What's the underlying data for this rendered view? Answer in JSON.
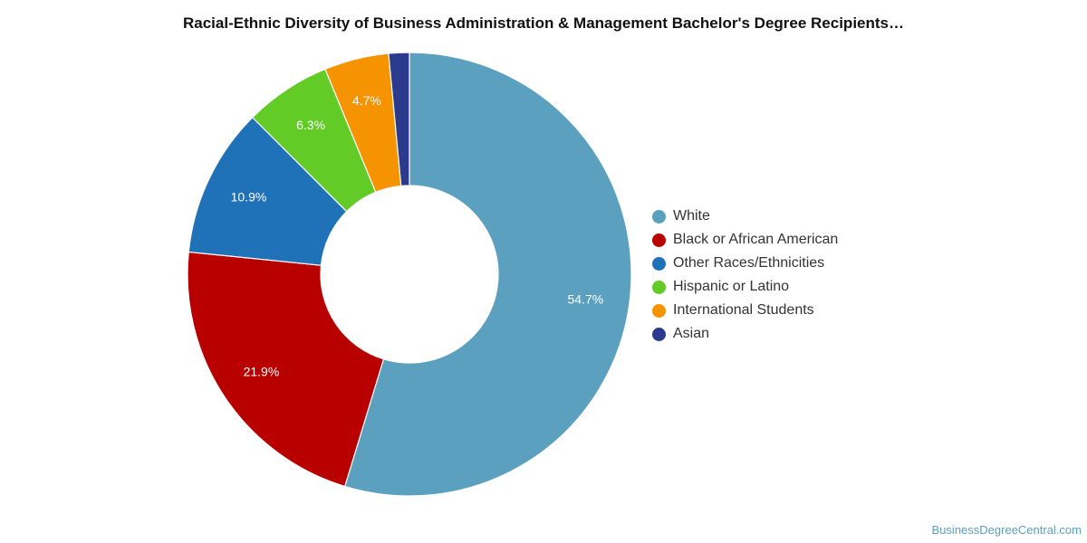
{
  "credit": "BusinessDegreeCentral.com",
  "chart_data": {
    "type": "pie",
    "title": "Racial-Ethnic Diversity of Business Administration & Management Bachelor's Degree Recipients…",
    "donut": true,
    "legend_placement": "right",
    "slices": [
      {
        "label": "White",
        "value": 54.7,
        "value_label": "54.7%",
        "color": "#5ba0bf"
      },
      {
        "label": "Black or African American",
        "value": 21.9,
        "value_label": "21.9%",
        "color": "#b90000"
      },
      {
        "label": "Other Races/Ethnicities",
        "value": 10.9,
        "value_label": "10.9%",
        "color": "#1f72b8"
      },
      {
        "label": "Hispanic or Latino",
        "value": 6.3,
        "value_label": "6.3%",
        "color": "#62cb26"
      },
      {
        "label": "International Students",
        "value": 4.7,
        "value_label": "4.7%",
        "color": "#f69300"
      },
      {
        "label": "Asian",
        "value": 1.5,
        "value_label": "",
        "color": "#2b3a8d"
      }
    ]
  }
}
